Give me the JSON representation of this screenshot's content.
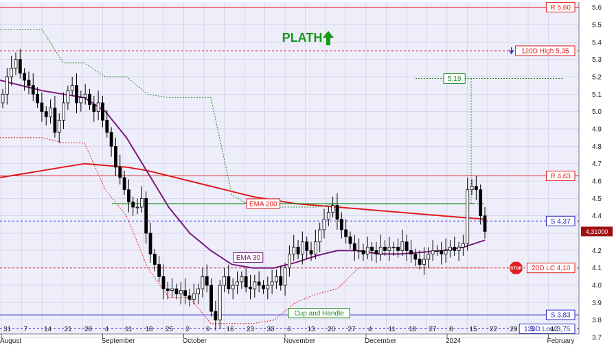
{
  "colors": {
    "background": "#eeeefb",
    "grid": "#c9c9e6",
    "resistance": "#e02020",
    "support": "#2a2acc",
    "ema200": "#e01a1a",
    "ema30": "#7a1a7a",
    "channel": "#1a8a1a",
    "stop": "#e02020",
    "candle": "#000000",
    "title": "#159a15"
  },
  "chart_data": {
    "type": "candlestick",
    "title": "PLATH",
    "trend_icon": "up-arrow-icon",
    "ylim": [
      3.72,
      5.63
    ],
    "y_ticks": [
      3.7,
      3.8,
      3.9,
      4.0,
      4.1,
      4.2,
      4.3,
      4.4,
      4.5,
      4.6,
      4.7,
      4.8,
      4.9,
      5.0,
      5.1,
      5.2,
      5.3,
      5.4,
      5.5,
      5.6
    ],
    "x_day_labels": [
      "31",
      "7",
      "14",
      "21",
      "28",
      "4",
      "11",
      "18",
      "25",
      "2",
      "9",
      "16",
      "23",
      "30",
      "6",
      "13",
      "20",
      "27",
      "4",
      "11",
      "18",
      "27",
      "8",
      "15",
      "22",
      "29",
      "5",
      "12"
    ],
    "x_month_labels": [
      "August",
      "September",
      "October",
      "November",
      "December",
      "2024",
      "February"
    ],
    "levels": [
      {
        "label": "R 5,60",
        "value": 5.6,
        "kind": "resistance",
        "style": "solid"
      },
      {
        "label": "120D High 5,35",
        "value": 5.35,
        "kind": "resistance",
        "style": "dashed",
        "arrow": "down"
      },
      {
        "label": "R 4,63",
        "value": 4.63,
        "kind": "resistance",
        "style": "solid"
      },
      {
        "label": "S 4,37",
        "value": 4.37,
        "kind": "support",
        "style": "dashed"
      },
      {
        "label": "20D LC 4,10",
        "value": 4.1,
        "kind": "stop",
        "style": "dashed",
        "stop_icon": "STOP"
      },
      {
        "label": "S 3,83",
        "value": 3.83,
        "kind": "support",
        "style": "solid"
      },
      {
        "label": "120D Low 3,75",
        "value": 3.75,
        "kind": "support",
        "style": "dashed"
      }
    ],
    "last_price": "4,31000",
    "annotations": {
      "ema200": "EMA 200",
      "ema30": "EMA 30",
      "target": "5,19",
      "pattern": "Cup and Handle"
    },
    "pattern_line_value": 4.47,
    "target_value": 5.19,
    "closes": [
      5.1,
      5.2,
      5.25,
      5.3,
      5.22,
      5.18,
      5.15,
      5.1,
      5.05,
      5.0,
      4.97,
      5.02,
      4.88,
      4.95,
      5.05,
      5.12,
      5.15,
      5.05,
      5.08,
      5.1,
      5.04,
      5.0,
      5.05,
      4.95,
      4.88,
      4.8,
      4.68,
      4.62,
      4.55,
      4.48,
      4.45,
      4.45,
      4.5,
      4.3,
      4.18,
      4.12,
      4.05,
      3.98,
      3.97,
      3.98,
      3.95,
      3.97,
      3.94,
      3.92,
      3.95,
      3.98,
      4.05,
      4.0,
      3.85,
      3.8,
      4.0,
      4.05,
      3.98,
      4.0,
      4.02,
      4.05,
      3.99,
      3.98,
      4.02,
      4.0,
      3.98,
      4.0,
      4.02,
      4.05,
      4.0,
      4.1,
      4.18,
      4.22,
      4.18,
      4.25,
      4.2,
      4.18,
      4.25,
      4.32,
      4.38,
      4.42,
      4.46,
      4.38,
      4.32,
      4.28,
      4.24,
      4.2,
      4.2,
      4.18,
      4.22,
      4.2,
      4.18,
      4.22,
      4.2,
      4.22,
      4.22,
      4.2,
      4.25,
      4.2,
      4.18,
      4.15,
      4.12,
      4.15,
      4.18,
      4.2,
      4.2,
      4.18,
      4.2,
      4.22,
      4.2,
      4.22,
      4.24,
      4.55,
      4.57,
      4.55,
      4.4,
      4.31
    ],
    "ema200": [
      4.62,
      4.64,
      4.66,
      4.68,
      4.7,
      4.69,
      4.68,
      4.66,
      4.63,
      4.6,
      4.57,
      4.54,
      4.51,
      4.49,
      4.47,
      4.46,
      4.45,
      4.44,
      4.43,
      4.42,
      4.41,
      4.4,
      4.39,
      4.38
    ],
    "ema30": [
      5.18,
      5.15,
      5.12,
      5.1,
      5.08,
      5.0,
      4.85,
      4.65,
      4.45,
      4.3,
      4.2,
      4.12,
      4.1,
      4.1,
      4.13,
      4.17,
      4.2,
      4.2,
      4.18,
      4.18,
      4.19,
      4.2,
      4.22,
      4.26
    ]
  }
}
